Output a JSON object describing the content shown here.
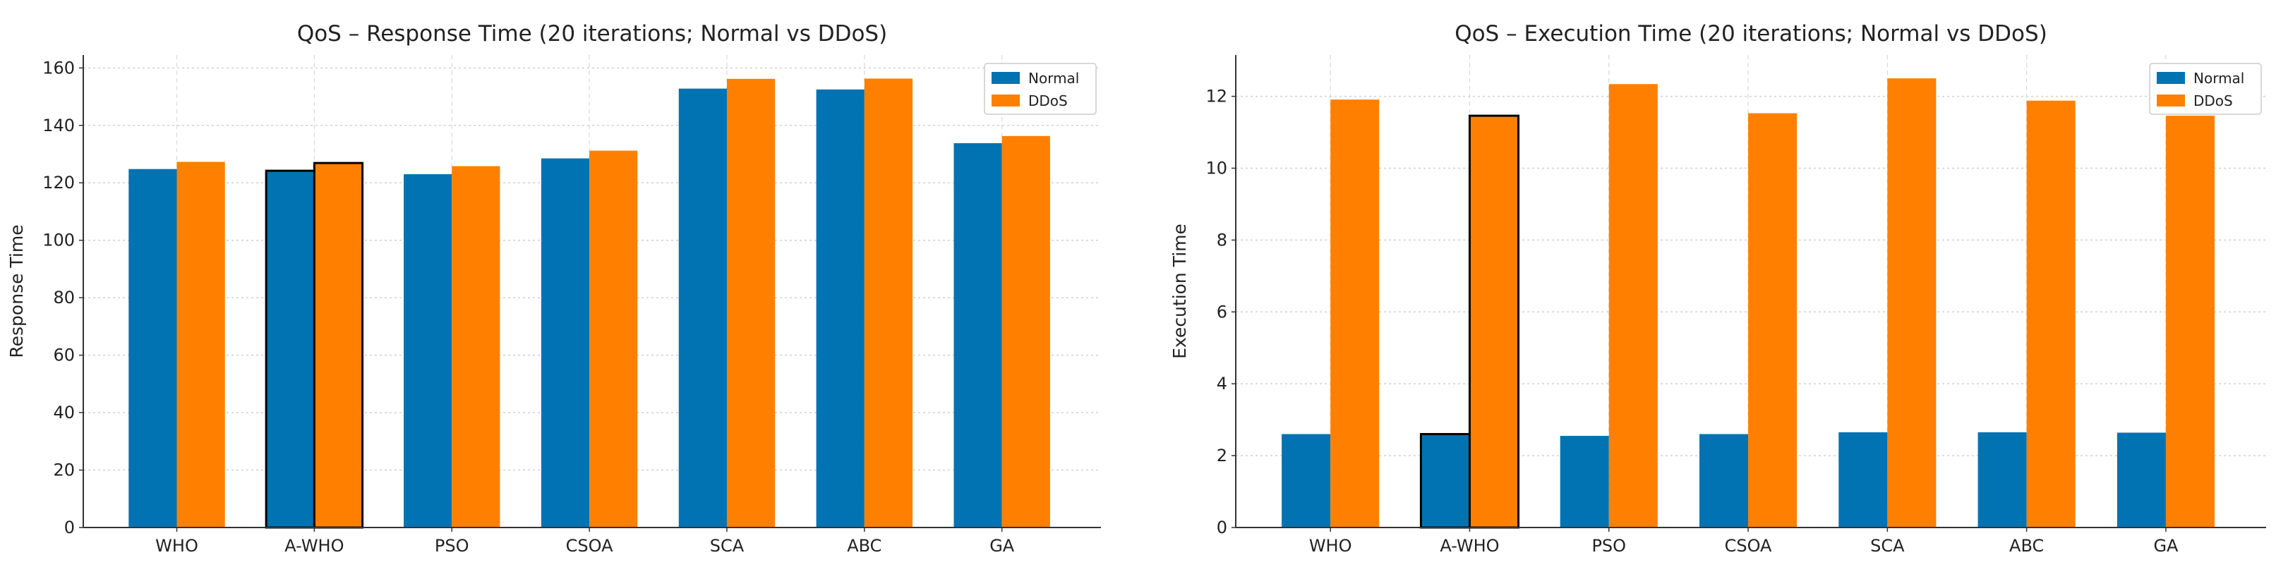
{
  "colors": {
    "normal": "#0173b2",
    "ddos": "#ff8000",
    "highlight_edge": "#000000"
  },
  "chart_data": [
    {
      "type": "bar",
      "title": "QoS – Response Time (20 iterations; Normal vs DDoS)",
      "xlabel": "",
      "ylabel": "Response Time",
      "categories": [
        "WHO",
        "A-WHO",
        "PSO",
        "CSOA",
        "SCA",
        "ABC",
        "GA"
      ],
      "highlighted_category": "A-WHO",
      "series": [
        {
          "name": "Normal",
          "values": [
            124.8,
            124.2,
            123.0,
            128.5,
            152.8,
            152.5,
            133.8
          ]
        },
        {
          "name": "DDoS",
          "values": [
            127.3,
            126.9,
            125.8,
            131.2,
            156.2,
            156.3,
            136.3
          ]
        }
      ],
      "ylim": [
        0,
        164.5
      ],
      "yticks": [
        0,
        20,
        40,
        60,
        80,
        100,
        120,
        140,
        160
      ],
      "grid": true,
      "legend": "top-right"
    },
    {
      "type": "bar",
      "title": "QoS – Execution Time (20 iterations; Normal vs DDoS)",
      "xlabel": "",
      "ylabel": "Execution Time",
      "categories": [
        "WHO",
        "A-WHO",
        "PSO",
        "CSOA",
        "SCA",
        "ABC",
        "GA"
      ],
      "highlighted_category": "A-WHO",
      "series": [
        {
          "name": "Normal",
          "values": [
            2.6,
            2.6,
            2.55,
            2.6,
            2.65,
            2.65,
            2.64
          ]
        },
        {
          "name": "DDoS",
          "values": [
            11.91,
            11.46,
            12.34,
            11.53,
            12.5,
            11.88,
            11.46
          ]
        }
      ],
      "ylim": [
        0,
        13.15
      ],
      "yticks": [
        0,
        2,
        4,
        6,
        8,
        10,
        12
      ],
      "grid": true,
      "legend": "top-right"
    }
  ]
}
